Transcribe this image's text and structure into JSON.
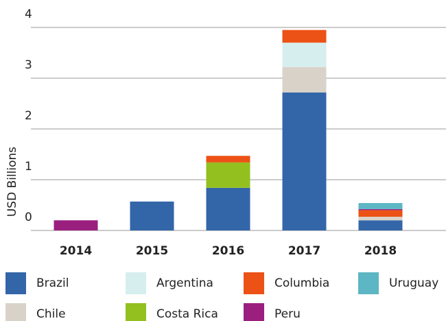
{
  "chart_data": {
    "type": "stacked_bar",
    "y_label": "USD Billions",
    "categories": [
      "2014",
      "2015",
      "2016",
      "2017",
      "2018"
    ],
    "series": [
      {
        "name": "Brazil",
        "color": "#3366a8",
        "values": [
          null,
          0.57,
          0.84,
          2.72,
          0.2
        ]
      },
      {
        "name": "Chile",
        "color": "#d9d2c9",
        "values": [
          null,
          null,
          null,
          0.5,
          0.07
        ]
      },
      {
        "name": "Costa Rica",
        "color": "#93c01f",
        "values": [
          null,
          null,
          0.5,
          null,
          null
        ]
      },
      {
        "name": "Argentina",
        "color": "#d6eeee",
        "values": [
          null,
          null,
          null,
          0.48,
          null
        ]
      },
      {
        "name": "Columbia",
        "color": "#ec5216",
        "values": [
          null,
          null,
          0.13,
          0.25,
          0.13
        ]
      },
      {
        "name": "Peru",
        "color": "#9b1f7f",
        "values": [
          0.2,
          null,
          null,
          null,
          0.02
        ]
      },
      {
        "name": "Uruguay",
        "color": "#5db6c3",
        "values": [
          null,
          null,
          null,
          null,
          0.12
        ]
      }
    ],
    "ylim": [
      0,
      4
    ],
    "yticks": [
      0,
      1,
      2,
      3,
      4
    ],
    "grid": true
  }
}
